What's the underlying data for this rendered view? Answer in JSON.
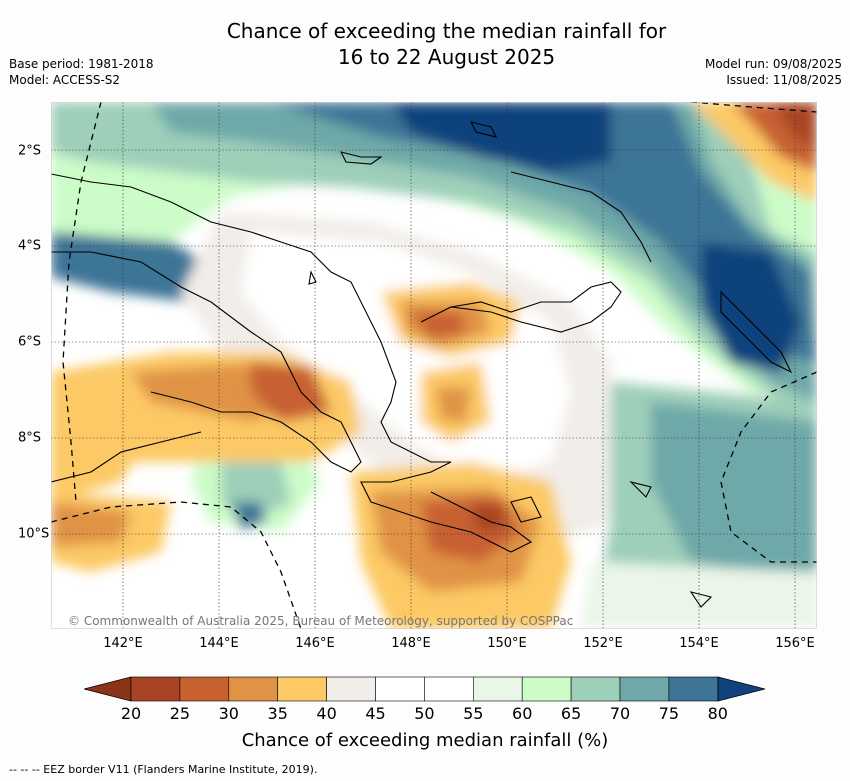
{
  "title_line1": "Chance of exceeding the median rainfall for",
  "title_line2": "16 to 22 August 2025",
  "base_period": "Base period: 1981-2018",
  "model": "Model: ACCESS-S2",
  "model_run": "Model run: 09/08/2025",
  "issued": "Issued: 11/08/2025",
  "copyright": "© Commonwealth of Australia 2025, Bureau of Meteorology, supported by COSPPac",
  "x_ticks": [
    "142°E",
    "144°E",
    "146°E",
    "148°E",
    "150°E",
    "152°E",
    "154°E",
    "156°E"
  ],
  "y_ticks": [
    "2°S",
    "4°S",
    "6°S",
    "8°S",
    "10°S"
  ],
  "colorbar": {
    "labels": [
      "20",
      "25",
      "30",
      "35",
      "40",
      "45",
      "50",
      "55",
      "60",
      "65",
      "70",
      "75",
      "80"
    ],
    "colors": [
      "#a84424",
      "#c86130",
      "#e09345",
      "#fcc965",
      "#f1ede8",
      "#ffffff",
      "#ffffff",
      "#eaf6e8",
      "#ccfcc8",
      "#9dcfb9",
      "#6ea8a8",
      "#3e7596",
      "#10437d"
    ],
    "title": "Chance of exceeding median rainfall (%)"
  },
  "footer": "-- -- -- EEZ border V11 (Flanders Marine Institute, 2019)."
}
